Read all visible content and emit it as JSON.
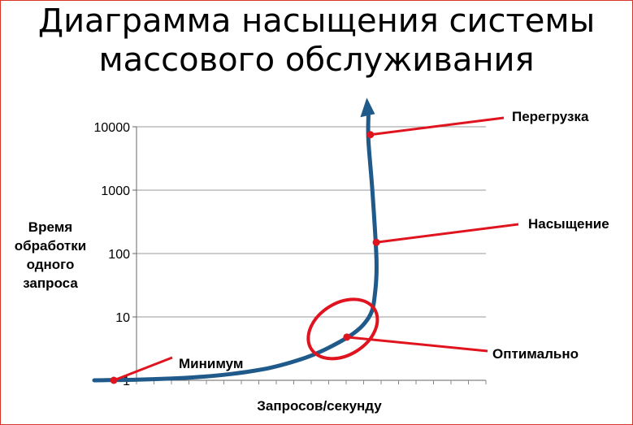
{
  "title_line1": "Диаграмма насыщения системы",
  "title_line2": "массового обслуживания",
  "chart_data": {
    "type": "line",
    "title": "Диаграмма насыщения системы массового обслуживания",
    "xlabel": "Запросов/секунду",
    "ylabel": "Время обработки одного запроса",
    "yscale": "log",
    "ylim": [
      1,
      10000
    ],
    "yticks": [
      "1",
      "10",
      "100",
      "1000",
      "10000"
    ],
    "grid": "horizontal",
    "series": [
      {
        "color": "#1f5a8a",
        "points": [
          [
            0.0,
            1.0
          ],
          [
            0.05,
            1.01
          ],
          [
            0.1,
            1.02
          ],
          [
            0.15,
            1.04
          ],
          [
            0.2,
            1.07
          ],
          [
            0.25,
            1.11
          ],
          [
            0.3,
            1.17
          ],
          [
            0.35,
            1.26
          ],
          [
            0.4,
            1.39
          ],
          [
            0.45,
            1.58
          ],
          [
            0.5,
            1.9
          ],
          [
            0.55,
            2.4
          ],
          [
            0.6,
            3.3
          ],
          [
            0.65,
            4.9
          ],
          [
            0.68,
            6.8
          ],
          [
            0.7,
            9.6
          ],
          [
            0.71,
            13
          ],
          [
            0.715,
            19
          ],
          [
            0.72,
            40
          ],
          [
            0.72,
            100
          ],
          [
            0.71,
            1000
          ],
          [
            0.7,
            6000
          ],
          [
            0.7,
            15000
          ]
        ]
      }
    ],
    "annotations": [
      {
        "label": "Минимум",
        "x": 0.05,
        "y": 1.0
      },
      {
        "label": "Оптимально",
        "x": 0.645,
        "y": 4.8
      },
      {
        "label": "Насыщение",
        "x": 0.72,
        "y": 150
      },
      {
        "label": "Перегрузка",
        "x": 0.705,
        "y": 7500
      }
    ],
    "colors": {
      "curve": "#1f5a8a",
      "marker": "#e0141e",
      "grid": "#9a9a9a"
    }
  }
}
